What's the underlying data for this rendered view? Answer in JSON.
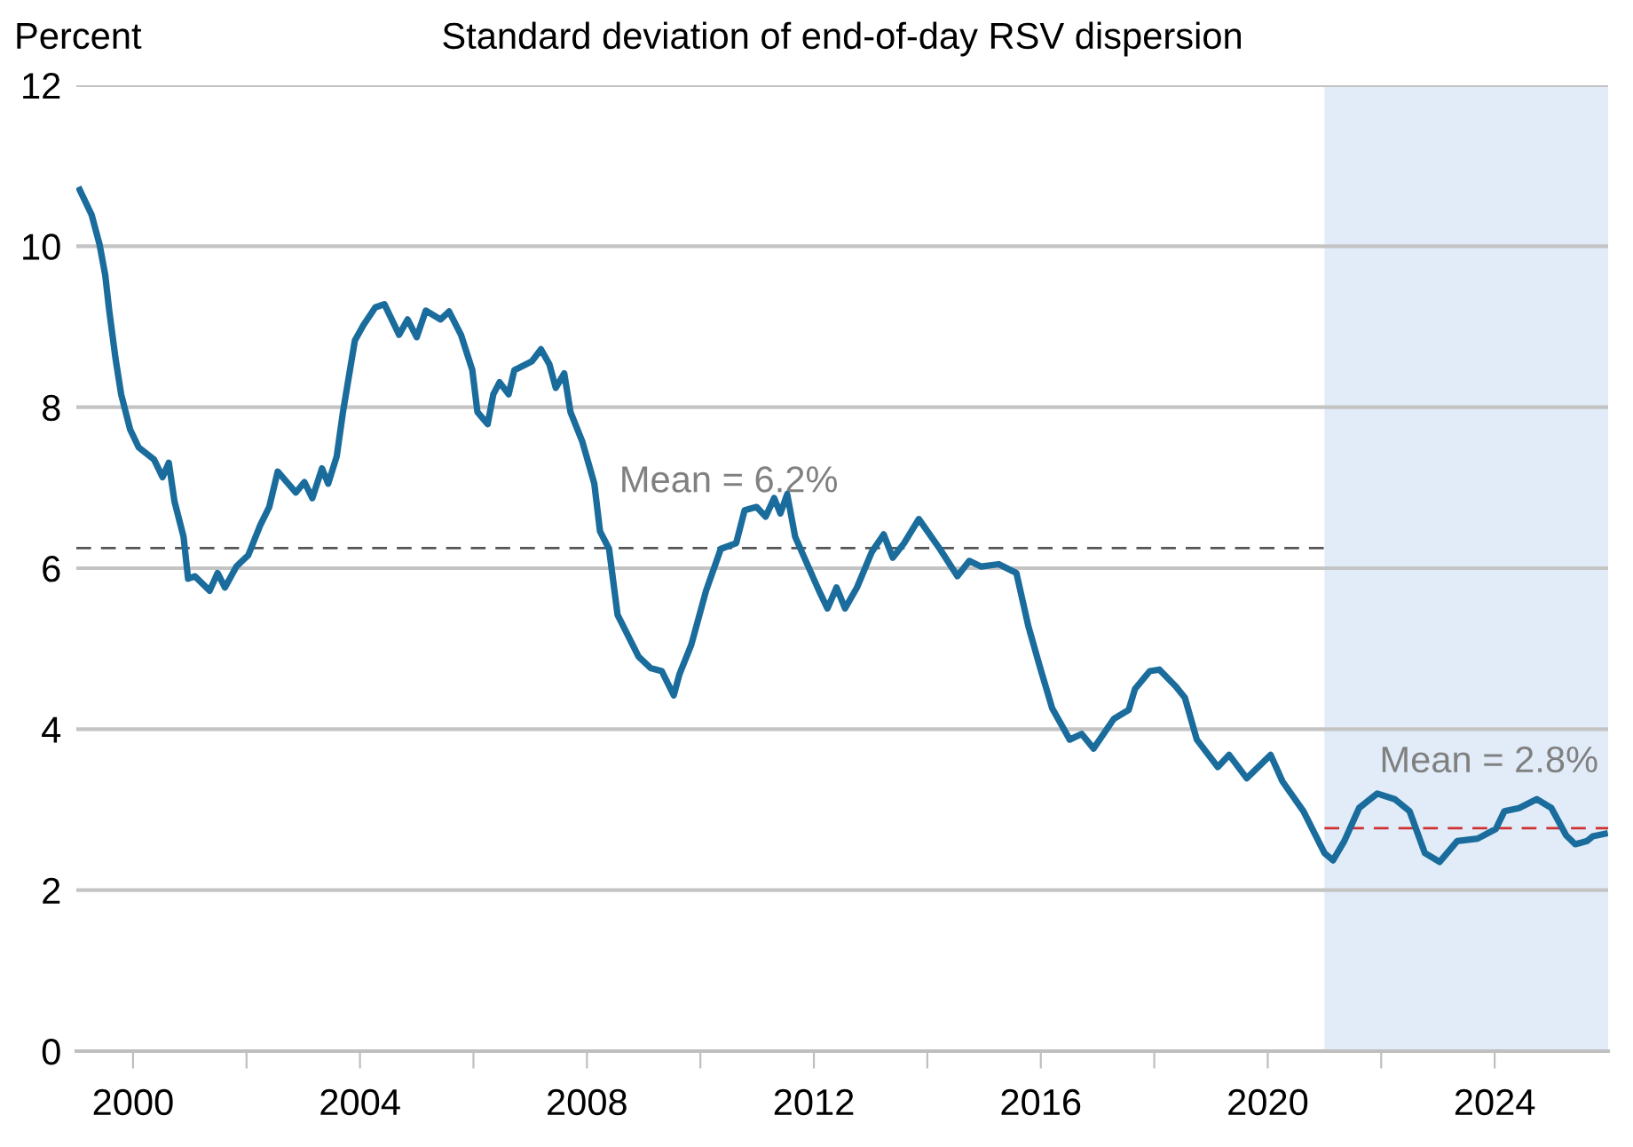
{
  "chart_data": {
    "type": "line",
    "title": "Standard deviation of end-of-day RSV dispersion",
    "ylabel": "Percent",
    "x": [
      1999.06,
      1999.27,
      1999.41,
      1999.51,
      1999.58,
      1999.69,
      1999.79,
      1999.95,
      2000.1,
      2000.37,
      2000.52,
      2000.63,
      2000.73,
      2000.89,
      2000.97,
      2001.09,
      2001.35,
      2001.49,
      2001.62,
      2001.82,
      2002.03,
      2002.24,
      2002.4,
      2002.55,
      2002.87,
      2003.02,
      2003.16,
      2003.33,
      2003.44,
      2003.59,
      2003.7,
      2003.91,
      2004.06,
      2004.27,
      2004.43,
      2004.69,
      2004.84,
      2005.0,
      2005.16,
      2005.42,
      2005.57,
      2005.78,
      2005.98,
      2006.07,
      2006.25,
      2006.35,
      2006.46,
      2006.62,
      2006.72,
      2007.03,
      2007.19,
      2007.34,
      2007.45,
      2007.6,
      2007.71,
      2007.92,
      2008.13,
      2008.23,
      2008.39,
      2008.54,
      2008.59,
      2008.91,
      2009.12,
      2009.32,
      2009.53,
      2009.63,
      2009.84,
      2010.1,
      2010.36,
      2010.63,
      2010.78,
      2010.99,
      2011.15,
      2011.3,
      2011.41,
      2011.53,
      2011.67,
      2012.09,
      2012.24,
      2012.4,
      2012.55,
      2012.76,
      2013.02,
      2013.23,
      2013.39,
      2013.59,
      2013.85,
      2014.22,
      2014.53,
      2014.74,
      2014.95,
      2015.26,
      2015.57,
      2015.78,
      2015.99,
      2016.2,
      2016.51,
      2016.72,
      2016.93,
      2017.29,
      2017.55,
      2017.66,
      2017.92,
      2018.09,
      2018.38,
      2018.54,
      2018.75,
      2019.12,
      2019.32,
      2019.63,
      2020.05,
      2020.26,
      2020.63,
      2021.0,
      2021.15,
      2021.35,
      2021.61,
      2021.93,
      2022.24,
      2022.5,
      2022.77,
      2023.03,
      2023.34,
      2023.7,
      2024.02,
      2024.17,
      2024.43,
      2024.74,
      2025.0,
      2025.26,
      2025.42,
      2025.63,
      2025.73,
      2025.94
    ],
    "series": [
      {
        "color": "#1a6c9c",
        "values": [
          10.7,
          10.39,
          10.02,
          9.64,
          9.2,
          8.61,
          8.16,
          7.72,
          7.5,
          7.35,
          7.13,
          7.31,
          6.83,
          6.39,
          5.87,
          5.9,
          5.72,
          5.94,
          5.76,
          6.02,
          6.16,
          6.53,
          6.76,
          7.2,
          6.94,
          7.07,
          6.87,
          7.24,
          7.05,
          7.39,
          7.94,
          8.83,
          9.02,
          9.24,
          9.28,
          8.9,
          9.09,
          8.87,
          9.2,
          9.09,
          9.19,
          8.9,
          8.46,
          7.94,
          7.79,
          8.16,
          8.31,
          8.16,
          8.46,
          8.57,
          8.72,
          8.53,
          8.24,
          8.42,
          7.94,
          7.57,
          7.05,
          6.46,
          6.24,
          5.42,
          5.35,
          4.9,
          4.76,
          4.72,
          4.42,
          4.68,
          5.05,
          5.72,
          6.24,
          6.31,
          6.72,
          6.76,
          6.64,
          6.87,
          6.68,
          6.92,
          6.39,
          5.72,
          5.5,
          5.76,
          5.5,
          5.76,
          6.2,
          6.42,
          6.13,
          6.31,
          6.61,
          6.24,
          5.9,
          6.09,
          6.02,
          6.05,
          5.94,
          5.28,
          4.76,
          4.26,
          3.87,
          3.94,
          3.76,
          4.13,
          4.24,
          4.5,
          4.72,
          4.74,
          4.53,
          4.39,
          3.87,
          3.53,
          3.68,
          3.39,
          3.68,
          3.35,
          2.98,
          2.46,
          2.37,
          2.61,
          3.02,
          3.2,
          3.13,
          2.98,
          2.46,
          2.35,
          2.61,
          2.64,
          2.76,
          2.98,
          3.02,
          3.13,
          3.02,
          2.68,
          2.57,
          2.61,
          2.67,
          2.7
        ]
      }
    ],
    "xlim": [
      1999,
      2026
    ],
    "ylim": [
      0,
      12
    ],
    "xticks": [
      2000,
      {
        "value": 2002,
        "label": null
      },
      2004,
      {
        "value": 2006,
        "label": null
      },
      2008,
      {
        "value": 2010,
        "label": null
      },
      2012,
      {
        "value": 2014,
        "label": null
      },
      2016,
      {
        "value": 2018,
        "label": null
      },
      2020,
      {
        "value": 2022,
        "label": null
      },
      2024
    ],
    "yticks": [
      0,
      2,
      4,
      6,
      8,
      10,
      12
    ],
    "grid": "y",
    "line_style": "solid",
    "bands": [
      {
        "axis": "x",
        "from": 2021,
        "to": 2026,
        "color": "#e1ecf8"
      }
    ],
    "ref_lines": [
      {
        "axis": "y",
        "value": 6.25,
        "label": "Mean = 6.2%",
        "color": "#555555",
        "line_style": "dashed"
      },
      {
        "axis": "y",
        "value": 2.77,
        "label": "Mean = 2.8%",
        "color": "#d03030",
        "line_style": "dashed"
      }
    ]
  }
}
